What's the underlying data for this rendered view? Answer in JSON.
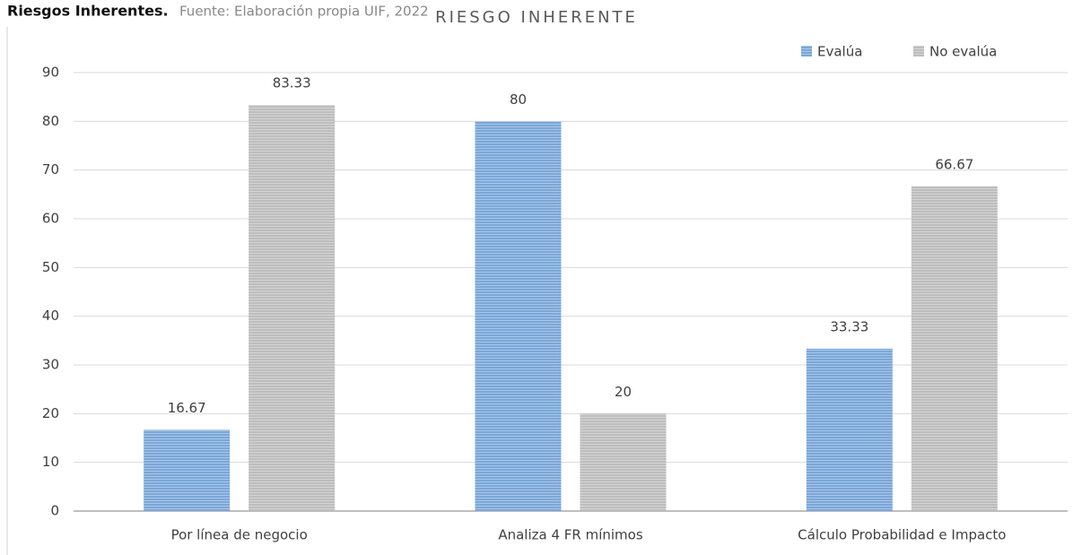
{
  "chart_data": {
    "type": "bar",
    "figure_label": "Riesgos Inherentes.",
    "source": "Fuente: Elaboración propia UIF, 2022",
    "title": "RIESGO INHERENTE",
    "categories": [
      "Por línea de negocio",
      "Analiza 4 FR mínimos",
      "Cálculo Probabilidad e Impacto"
    ],
    "series": [
      {
        "name": "Evalúa",
        "color": "#7ba7d9",
        "values": [
          16.67,
          80,
          33.33
        ]
      },
      {
        "name": "No evalúa",
        "color": "#bdbdbd",
        "values": [
          83.33,
          20,
          66.67
        ]
      }
    ],
    "ylim": [
      0,
      90
    ],
    "yticks": [
      0,
      10,
      20,
      30,
      40,
      50,
      60,
      70,
      80,
      90
    ],
    "grid": true,
    "legend": "top-right"
  }
}
